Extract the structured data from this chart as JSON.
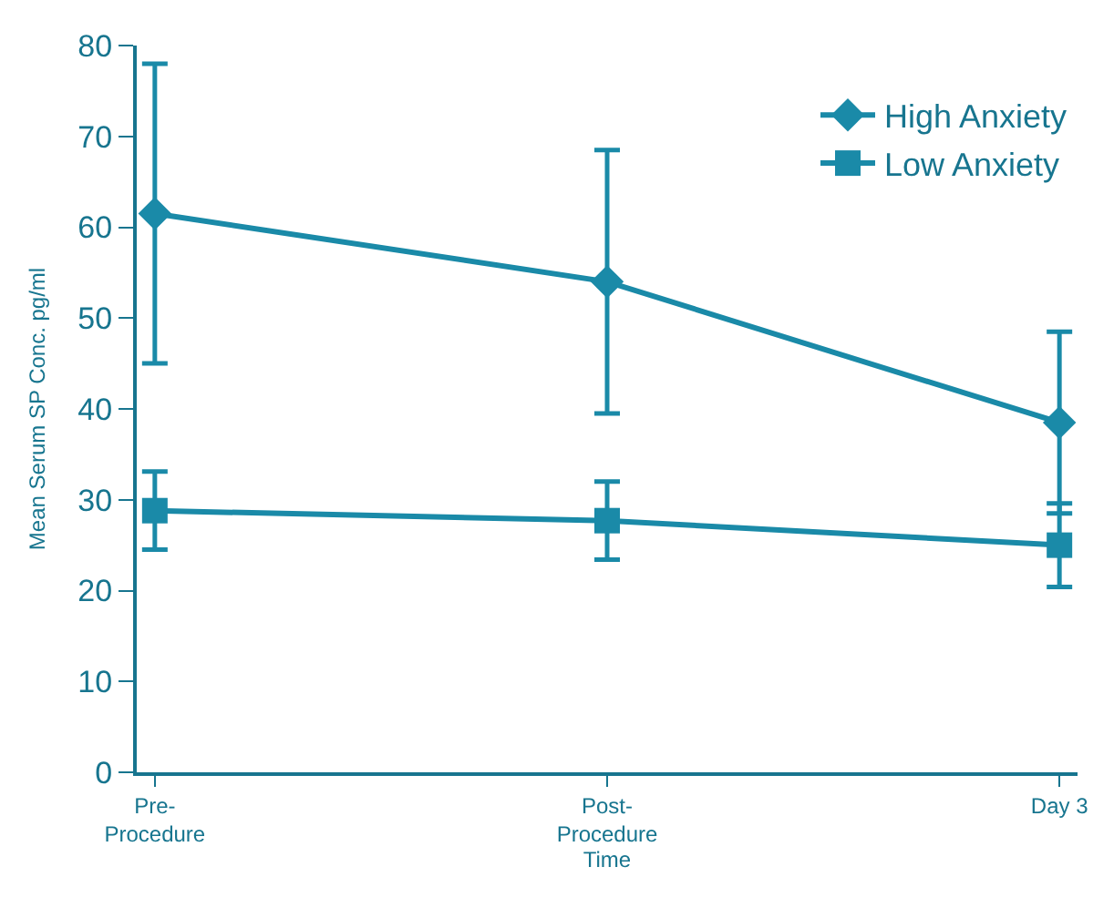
{
  "chart_data": {
    "type": "line",
    "xlabel": "Time",
    "ylabel": "Mean Serum SP Conc. pg/ml",
    "categories": [
      "Pre-\nProcedure",
      "Post-\nProcedure",
      "Day 3"
    ],
    "series": [
      {
        "name": "High Anxiety",
        "color": "#1a8aa8",
        "marker": "diamond",
        "values": [
          61.5,
          54,
          38.5
        ],
        "errors": [
          16.5,
          14.5,
          10
        ]
      },
      {
        "name": "Low Anxiety",
        "color": "#1a8aa8",
        "marker": "square",
        "values": [
          28.8,
          27.7,
          25
        ],
        "errors": [
          4.3,
          4.3,
          4.6
        ]
      }
    ],
    "ylim": [
      0,
      80
    ],
    "yticks": [
      0,
      10,
      20,
      30,
      40,
      50,
      60,
      70,
      80
    ],
    "legend": "top right",
    "line_style": "solid"
  }
}
